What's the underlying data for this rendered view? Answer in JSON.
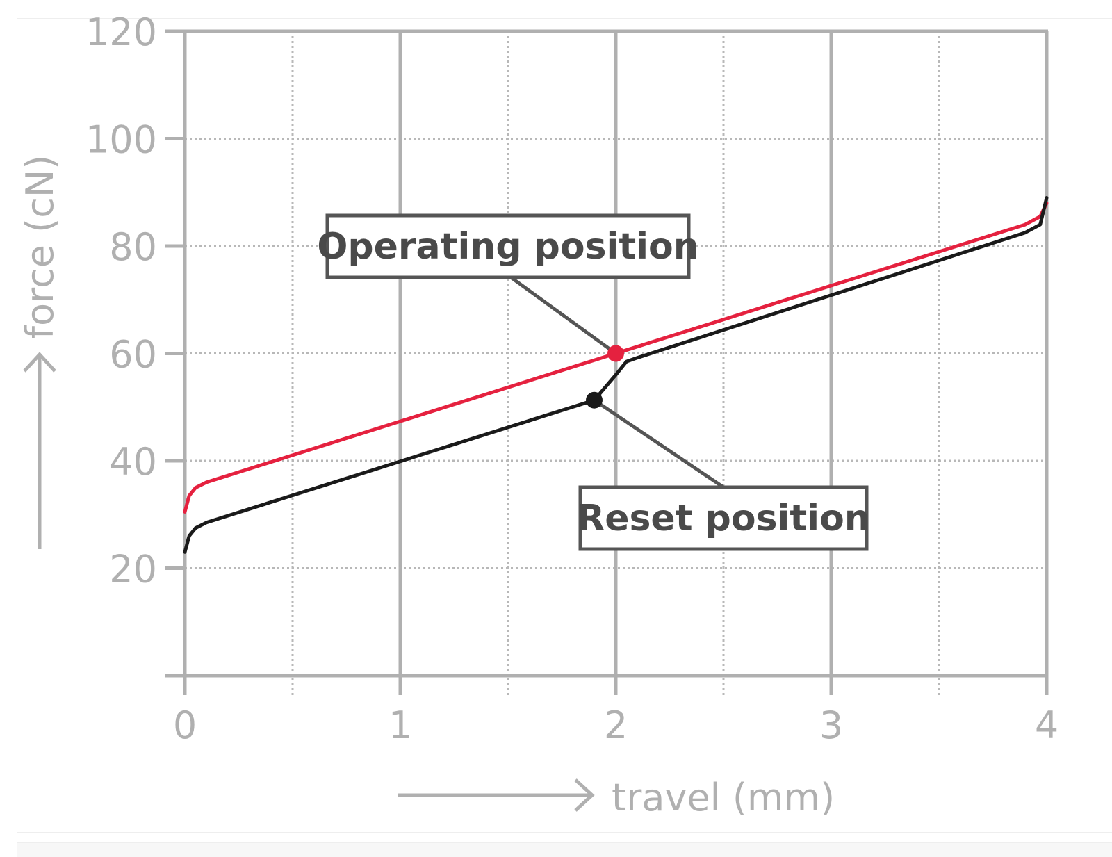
{
  "chart_data": {
    "type": "line",
    "xlabel": "travel (mm)",
    "ylabel": "force (cN)",
    "xlim": [
      0,
      4
    ],
    "ylim": [
      0,
      120
    ],
    "x_ticks": [
      0,
      1,
      2,
      3,
      4
    ],
    "y_ticks": [
      20,
      40,
      60,
      80,
      100,
      120
    ],
    "grid": true,
    "series": [
      {
        "color": "#e5213f",
        "x": [
          0,
          0.02,
          0.05,
          0.1,
          2.0,
          3.9,
          3.97,
          4.0
        ],
        "y": [
          30.5,
          33.5,
          35,
          36,
          60,
          84,
          85.5,
          88
        ]
      },
      {
        "color": "#1a1a1a",
        "x": [
          0,
          0.02,
          0.05,
          0.1,
          1.9,
          2.0,
          2.05,
          2.1,
          3.9,
          3.97,
          4.0
        ],
        "y": [
          23,
          26,
          27.5,
          28.5,
          51.3,
          56,
          58.5,
          59.2,
          82.5,
          84,
          89
        ]
      }
    ],
    "annotations": [
      {
        "label": "Operating position",
        "point": [
          2.0,
          60
        ],
        "color": "#e5213f"
      },
      {
        "label": "Reset position",
        "point": [
          1.9,
          51.3
        ],
        "color": "#1a1a1a"
      }
    ]
  }
}
